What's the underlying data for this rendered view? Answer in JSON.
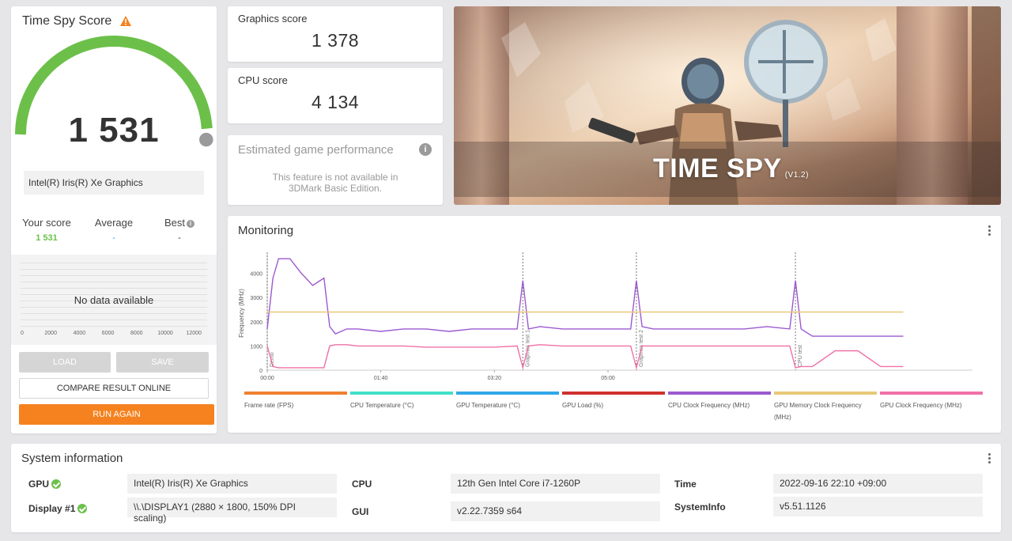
{
  "score_card": {
    "title": "Time Spy Score",
    "score": "1 531",
    "gauge_level": 0.94,
    "gpu_name": "Intel(R) Iris(R) Xe Graphics",
    "your_score_label": "Your score",
    "your_score_value": "1 531",
    "average_label": "Average",
    "average_value": "-",
    "best_label": "Best",
    "best_value": "-",
    "no_data": "No data available",
    "hist_axis": [
      "0",
      "2000",
      "4000",
      "6000",
      "8000",
      "10000",
      "12000"
    ],
    "load_label": "LOAD",
    "save_label": "SAVE",
    "compare_label": "COMPARE RESULT ONLINE",
    "run_again_label": "RUN AGAIN"
  },
  "graphics": {
    "label": "Graphics score",
    "value": "1 378"
  },
  "cpu": {
    "label": "CPU score",
    "value": "4 134"
  },
  "estimated": {
    "title": "Estimated game performance",
    "text": "This feature is not available in 3DMark Basic Edition."
  },
  "banner": {
    "title": "TIME SPY",
    "version": "(V1.2)"
  },
  "monitoring": {
    "title": "Monitoring",
    "ylabel": "Frequency (MHz)",
    "y_ticks": [
      "0",
      "1000",
      "2000",
      "3000",
      "4000"
    ],
    "x_ticks": [
      "00:00",
      "01:40",
      "03:20",
      "05:00"
    ],
    "phase_labels": [
      "Demo",
      "Graphics test 1",
      "Graphics test 2",
      "CPU test"
    ],
    "legend": [
      {
        "label": "Frame rate (FPS)",
        "color": "#f08030"
      },
      {
        "label": "CPU Temperature (°C)",
        "color": "#40e0c8"
      },
      {
        "label": "GPU Temperature (°C)",
        "color": "#30a8e8"
      },
      {
        "label": "GPU Load (%)",
        "color": "#d03030"
      },
      {
        "label": "CPU Clock Frequency (MHz)",
        "color": "#9b59d0"
      },
      {
        "label": "GPU Memory Clock Frequency (MHz)",
        "color": "#e8c878"
      },
      {
        "label": "GPU Clock Frequency (MHz)",
        "color": "#f070a8"
      }
    ]
  },
  "chart_data": {
    "type": "line",
    "xlabel": "",
    "ylabel": "Frequency (MHz)",
    "ylim": [
      0,
      4800
    ],
    "x_unit": "seconds",
    "x": [
      0,
      5,
      10,
      20,
      30,
      40,
      50,
      55,
      60,
      70,
      80,
      100,
      120,
      140,
      160,
      180,
      200,
      220,
      225,
      230,
      240,
      260,
      280,
      300,
      320,
      325,
      330,
      340,
      360,
      380,
      400,
      420,
      440,
      460,
      465,
      470,
      480,
      500,
      520,
      540,
      560
    ],
    "series": [
      {
        "name": "CPU Clock Frequency (MHz)",
        "values": [
          1700,
          3800,
          4600,
          4600,
          4000,
          3500,
          3800,
          1800,
          1500,
          1700,
          1700,
          1600,
          1700,
          1700,
          1600,
          1700,
          1700,
          1700,
          3700,
          1700,
          1800,
          1700,
          1700,
          1700,
          1700,
          3700,
          1800,
          1700,
          1700,
          1700,
          1700,
          1700,
          1800,
          1700,
          3700,
          1700,
          1400,
          1400,
          1400,
          1400,
          1400
        ]
      },
      {
        "name": "GPU Memory Clock Frequency (MHz)",
        "values": [
          2400,
          2400,
          2400,
          2400,
          2400,
          2400,
          2400,
          2400,
          2400,
          2400,
          2400,
          2400,
          2400,
          2400,
          2400,
          2400,
          2400,
          2400,
          2400,
          2400,
          2400,
          2400,
          2400,
          2400,
          2400,
          2400,
          2400,
          2400,
          2400,
          2400,
          2400,
          2400,
          2400,
          2400,
          2400,
          2400,
          2400,
          2400,
          2400,
          2400,
          2400
        ]
      },
      {
        "name": "GPU Clock Frequency (MHz)",
        "values": [
          1000,
          150,
          100,
          100,
          100,
          100,
          100,
          1000,
          1050,
          1050,
          1000,
          1000,
          1000,
          950,
          950,
          950,
          950,
          1000,
          100,
          1000,
          1050,
          1000,
          1000,
          1000,
          1000,
          100,
          1000,
          1000,
          1000,
          1000,
          1000,
          1000,
          1000,
          1000,
          100,
          150,
          150,
          800,
          800,
          150,
          150
        ]
      }
    ]
  },
  "sysinfo": {
    "title": "System information",
    "gpu_label": "GPU",
    "gpu_value": "Intel(R) Iris(R) Xe Graphics",
    "display_label": "Display #1",
    "display_value": "\\\\.\\DISPLAY1 (2880 × 1800, 150% DPI scaling)",
    "cpu_label": "CPU",
    "cpu_value": "12th Gen Intel Core i7-1260P",
    "gui_label": "GUI",
    "gui_value": "v2.22.7359 s64",
    "time_label": "Time",
    "time_value": "2022-09-16 22:10 +09:00",
    "systeminfo_label": "SystemInfo",
    "systeminfo_value": "v5.51.1126"
  },
  "colors": {
    "gauge_green": "#6cc04a",
    "accent_orange": "#f5821f",
    "score_green": "#6cc04a",
    "average_blue": "#30a8e8"
  }
}
